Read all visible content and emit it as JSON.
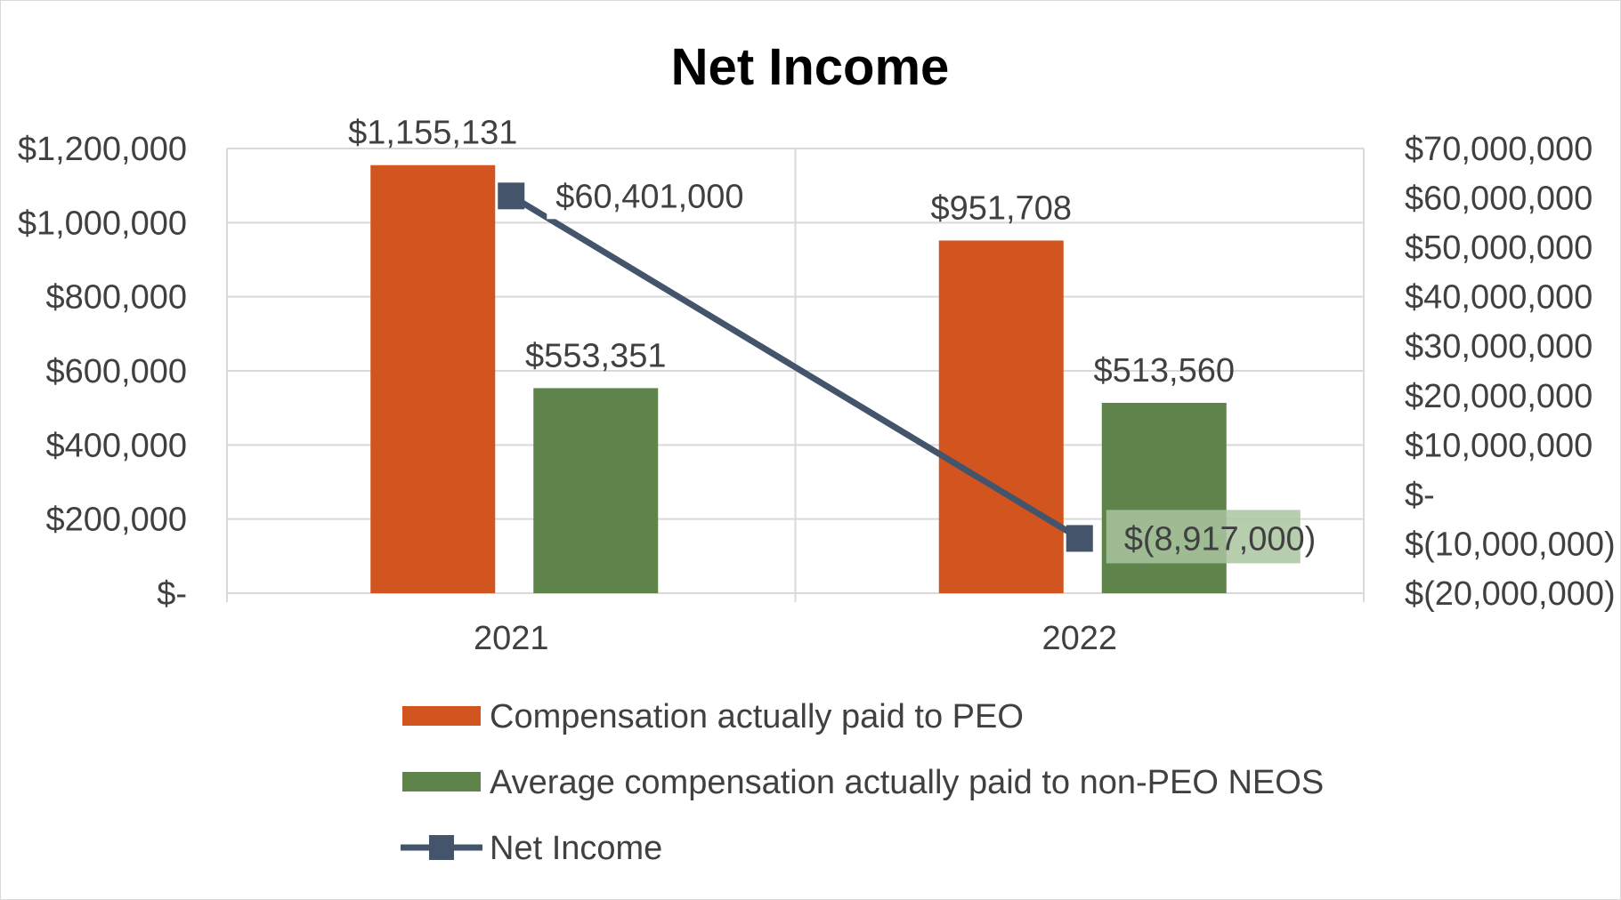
{
  "chart_data": {
    "type": "bar",
    "title": "Net Income",
    "categories": [
      "2021",
      "2022"
    ],
    "series": [
      {
        "name": "Compensation actually paid to PEO",
        "type": "bar",
        "axis": "left",
        "color": "#d2541f",
        "values": [
          1155131,
          951708
        ],
        "labels": [
          "$1,155,131",
          "$951,708"
        ]
      },
      {
        "name": "Average compensation actually paid to non-PEO NEOS",
        "type": "bar",
        "axis": "left",
        "color": "#5e844c",
        "values": [
          553351,
          513560
        ],
        "labels": [
          "$553,351",
          "$513,560"
        ]
      },
      {
        "name": "Net Income",
        "type": "line",
        "axis": "right",
        "color": "#44546a",
        "marker": "square",
        "values": [
          60401000,
          -8917000
        ],
        "labels": [
          "$60,401,000",
          "$(8,917,000)"
        ]
      }
    ],
    "y_left": {
      "lim": [
        0,
        1200000
      ],
      "ticks": [
        0,
        200000,
        400000,
        600000,
        800000,
        1000000,
        1200000
      ],
      "tick_labels": [
        "$-",
        "$200,000",
        "$400,000",
        "$600,000",
        "$800,000",
        "$1,000,000",
        "$1,200,000"
      ]
    },
    "y_right": {
      "lim": [
        -20000000,
        70000000
      ],
      "ticks": [
        -20000000,
        -10000000,
        0,
        10000000,
        20000000,
        30000000,
        40000000,
        50000000,
        60000000,
        70000000
      ],
      "tick_labels": [
        "$(20,000,000)",
        "$(10,000,000)",
        "$-",
        "$10,000,000",
        "$20,000,000",
        "$30,000,000",
        "$40,000,000",
        "$50,000,000",
        "$60,000,000",
        "$70,000,000"
      ]
    },
    "grid": true,
    "legend_position": "bottom",
    "colors": {
      "gridline": "#d9d9d9",
      "axis_text": "#404040",
      "label_highlight": "#a9c4a0"
    }
  }
}
